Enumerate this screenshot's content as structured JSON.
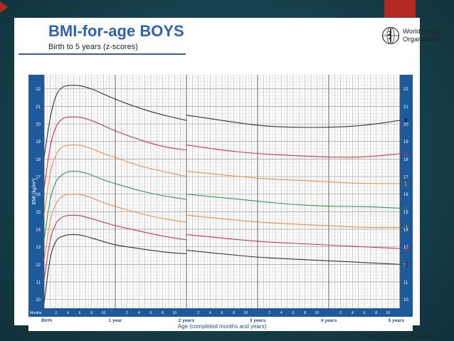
{
  "slide": {
    "title": "BMI-for-age BOYS",
    "subtitle": "Birth to 5 years (z-scores)",
    "org_name_line1": "World Health",
    "org_name_line2": "Organization",
    "credit": "WHO Child Growth Standards"
  },
  "colors": {
    "title": "#2f63b0",
    "band": "#1d5a9c",
    "accent_red": "#b02a23",
    "z3": "#333333",
    "z2": "#cc3355",
    "z1": "#e89040",
    "z0": "#2f9858"
  },
  "chart_data": {
    "type": "line",
    "title": "BMI-for-age BOYS",
    "subtitle": "Birth to 5 years (z-scores)",
    "xlabel": "Age (completed months and years)",
    "ylabel": "BMI (kg/m²)",
    "x_unit_label": "Months",
    "xlim": [
      0,
      60
    ],
    "ylim": [
      9.5,
      22.8
    ],
    "y_ticks": [
      10,
      11,
      12,
      13,
      14,
      15,
      16,
      17,
      18,
      19,
      20,
      21,
      22
    ],
    "x_major_ticks": [
      {
        "x": 0,
        "label": "Birth"
      },
      {
        "x": 12,
        "label": "1 year"
      },
      {
        "x": 24,
        "label": "2 years"
      },
      {
        "x": 36,
        "label": "3 years"
      },
      {
        "x": 48,
        "label": "4 years"
      },
      {
        "x": 60,
        "label": "5 years"
      }
    ],
    "x_minor_ticks": [
      2,
      4,
      6,
      8,
      10,
      14,
      16,
      18,
      20,
      22,
      26,
      28,
      30,
      32,
      34,
      38,
      40,
      42,
      44,
      46,
      50,
      52,
      54,
      56,
      58
    ],
    "x_minor_labels": [
      "2",
      "4",
      "6",
      "8",
      "10",
      "2",
      "4",
      "6",
      "8",
      "10",
      "2",
      "4",
      "6",
      "8",
      "10",
      "2",
      "4",
      "6",
      "8",
      "10",
      "2",
      "4",
      "6",
      "8",
      "10"
    ],
    "grid": true,
    "segments": [
      [
        0,
        24
      ],
      [
        24,
        60
      ]
    ],
    "series": [
      {
        "name": "3",
        "color": "#333333",
        "label_color": "#111111",
        "x": [
          0,
          1,
          2,
          3,
          4,
          6,
          8,
          10,
          12,
          16,
          20,
          24,
          24,
          30,
          36,
          42,
          48,
          54,
          60
        ],
        "y": [
          18.1,
          20.4,
          21.7,
          22.1,
          22.2,
          22.2,
          22.0,
          21.7,
          21.4,
          20.9,
          20.5,
          20.2,
          20.5,
          20.2,
          19.9,
          19.8,
          19.8,
          19.9,
          20.2
        ]
      },
      {
        "name": "2",
        "color": "#cc3355",
        "label_color": "#cc3355",
        "x": [
          0,
          1,
          2,
          3,
          4,
          6,
          8,
          10,
          12,
          16,
          20,
          24,
          24,
          30,
          36,
          42,
          48,
          54,
          60
        ],
        "y": [
          16.3,
          18.8,
          19.9,
          20.3,
          20.4,
          20.4,
          20.2,
          19.9,
          19.6,
          19.1,
          18.7,
          18.5,
          18.8,
          18.5,
          18.3,
          18.2,
          18.1,
          18.1,
          18.3
        ]
      },
      {
        "name": "1",
        "color": "#e89040",
        "label_color": "#e08a2a",
        "x": [
          0,
          1,
          2,
          3,
          4,
          6,
          8,
          10,
          12,
          16,
          20,
          24,
          24,
          30,
          36,
          42,
          48,
          54,
          60
        ],
        "y": [
          14.8,
          17.3,
          18.3,
          18.7,
          18.8,
          18.8,
          18.6,
          18.3,
          18.1,
          17.6,
          17.3,
          17.0,
          17.3,
          17.1,
          16.9,
          16.8,
          16.7,
          16.6,
          16.6
        ]
      },
      {
        "name": "0",
        "color": "#2f9858",
        "label_color": "#2a8a4e",
        "x": [
          0,
          1,
          2,
          3,
          4,
          6,
          8,
          10,
          12,
          16,
          20,
          24,
          24,
          30,
          36,
          42,
          48,
          54,
          60
        ],
        "y": [
          13.4,
          15.8,
          16.8,
          17.1,
          17.3,
          17.3,
          17.1,
          16.8,
          16.6,
          16.2,
          15.9,
          15.7,
          16.0,
          15.8,
          15.6,
          15.4,
          15.3,
          15.3,
          15.2
        ]
      },
      {
        "name": "-1",
        "color": "#e89040",
        "label_color": "#e08a2a",
        "x": [
          0,
          1,
          2,
          3,
          4,
          6,
          8,
          10,
          12,
          16,
          20,
          24,
          24,
          30,
          36,
          42,
          48,
          54,
          60
        ],
        "y": [
          12.2,
          14.6,
          15.5,
          15.9,
          16.0,
          16.0,
          15.8,
          15.5,
          15.3,
          14.9,
          14.6,
          14.4,
          14.8,
          14.6,
          14.4,
          14.3,
          14.2,
          14.1,
          14.1
        ]
      },
      {
        "name": "-2",
        "color": "#cc3355",
        "label_color": "#cc3355",
        "x": [
          0,
          1,
          2,
          3,
          4,
          6,
          8,
          10,
          12,
          16,
          20,
          24,
          24,
          30,
          36,
          42,
          48,
          54,
          60
        ],
        "y": [
          11.1,
          13.5,
          14.4,
          14.7,
          14.8,
          14.8,
          14.6,
          14.4,
          14.2,
          13.9,
          13.6,
          13.4,
          13.7,
          13.5,
          13.3,
          13.2,
          13.1,
          13.0,
          12.9
        ]
      },
      {
        "name": "-3",
        "color": "#333333",
        "label_color": "#111111",
        "x": [
          0,
          1,
          2,
          3,
          4,
          6,
          8,
          10,
          12,
          16,
          20,
          24,
          24,
          30,
          36,
          42,
          48,
          54,
          60
        ],
        "y": [
          9.8,
          12.5,
          13.4,
          13.6,
          13.7,
          13.7,
          13.5,
          13.3,
          13.1,
          12.9,
          12.7,
          12.6,
          12.8,
          12.6,
          12.4,
          12.3,
          12.2,
          12.1,
          12.0
        ]
      }
    ]
  }
}
